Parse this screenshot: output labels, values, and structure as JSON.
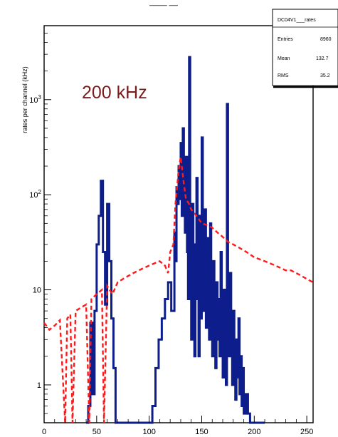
{
  "chart_data": {
    "type": "histogram",
    "title": "",
    "title_fragment": "____ __",
    "ylabel": "rates per channel (kHz)",
    "xlabel": "",
    "xlim": [
      0,
      256
    ],
    "ylim": [
      0.4,
      6000
    ],
    "y_scale": "log",
    "grid": false,
    "x_ticks": [
      0,
      50,
      100,
      150,
      200,
      250
    ],
    "y_ticks": [
      {
        "value": 1,
        "base": "1",
        "exp": ""
      },
      {
        "value": 10,
        "base": "10",
        "exp": ""
      },
      {
        "value": 100,
        "base": "10",
        "exp": "2"
      },
      {
        "value": 1000,
        "base": "10",
        "exp": "3"
      }
    ],
    "annotation": {
      "text": "200 kHz",
      "color": "#7a1c1c"
    },
    "stats_box": {
      "title": "DC04V1___rates",
      "rows": [
        {
          "label": "Entries",
          "value": "8960"
        },
        {
          "label": "Mean",
          "value": "132.7"
        },
        {
          "label": "RMS",
          "value": "35.2"
        }
      ]
    },
    "series": [
      {
        "style": "step-solid",
        "color": "#0d1e8c",
        "points": [
          [
            40,
            0.3
          ],
          [
            42,
            0.6
          ],
          [
            44,
            4.5
          ],
          [
            46,
            0.8
          ],
          [
            48,
            6
          ],
          [
            50,
            30
          ],
          [
            52,
            60
          ],
          [
            54,
            140
          ],
          [
            56,
            25
          ],
          [
            58,
            7
          ],
          [
            60,
            80
          ],
          [
            62,
            20
          ],
          [
            64,
            5
          ],
          [
            66,
            1.5
          ],
          [
            68,
            0.3
          ],
          [
            100,
            0.3
          ],
          [
            103,
            0.6
          ],
          [
            106,
            1.5
          ],
          [
            109,
            3
          ],
          [
            112,
            5
          ],
          [
            115,
            8
          ],
          [
            118,
            12
          ],
          [
            121,
            6
          ],
          [
            124,
            40
          ],
          [
            125,
            20
          ],
          [
            126,
            120
          ],
          [
            127,
            80
          ],
          [
            128,
            200
          ],
          [
            129,
            90
          ],
          [
            130,
            350
          ],
          [
            131,
            60
          ],
          [
            132,
            500
          ],
          [
            133,
            120
          ],
          [
            134,
            40
          ],
          [
            135,
            250
          ],
          [
            136,
            25
          ],
          [
            137,
            8
          ],
          [
            138,
            2800
          ],
          [
            139,
            15
          ],
          [
            140,
            3
          ],
          [
            141,
            80
          ],
          [
            142,
            12
          ],
          [
            143,
            2
          ],
          [
            144,
            30
          ],
          [
            145,
            150
          ],
          [
            146,
            8
          ],
          [
            147,
            2
          ],
          [
            148,
            60
          ],
          [
            149,
            5
          ],
          [
            150,
            400
          ],
          [
            151,
            10
          ],
          [
            152,
            6
          ],
          [
            153,
            70
          ],
          [
            154,
            4
          ],
          [
            155,
            35
          ],
          [
            156,
            15
          ],
          [
            157,
            3
          ],
          [
            158,
            50
          ],
          [
            159,
            6
          ],
          [
            160,
            2
          ],
          [
            161,
            20
          ],
          [
            162,
            5
          ],
          [
            163,
            1.5
          ],
          [
            164,
            12
          ],
          [
            165,
            3
          ],
          [
            166,
            8
          ],
          [
            167,
            2
          ],
          [
            168,
            25
          ],
          [
            169,
            4
          ],
          [
            170,
            1.2
          ],
          [
            171,
            10
          ],
          [
            172,
            3
          ],
          [
            173,
            1
          ],
          [
            174,
            900
          ],
          [
            175,
            6
          ],
          [
            176,
            2
          ],
          [
            177,
            15
          ],
          [
            178,
            4
          ],
          [
            179,
            1
          ],
          [
            180,
            6
          ],
          [
            181,
            2
          ],
          [
            182,
            0.7
          ],
          [
            183,
            3
          ],
          [
            184,
            1.2
          ],
          [
            185,
            5
          ],
          [
            186,
            0.8
          ],
          [
            187,
            2
          ],
          [
            188,
            0.6
          ],
          [
            189,
            1.5
          ],
          [
            190,
            0.5
          ],
          [
            192,
            0.8
          ],
          [
            194,
            0.5
          ],
          [
            196,
            0.4
          ],
          [
            198,
            0.3
          ],
          [
            210,
            0.3
          ]
        ]
      },
      {
        "style": "dashed",
        "color": "#ff1a1a",
        "points": [
          [
            0,
            4.5
          ],
          [
            5,
            3.8
          ],
          [
            10,
            4.2
          ],
          [
            15,
            4.8
          ],
          [
            20,
            0.4
          ],
          [
            22,
            5
          ],
          [
            25,
            5.5
          ],
          [
            27,
            0.4
          ],
          [
            30,
            6
          ],
          [
            35,
            6.5
          ],
          [
            40,
            7
          ],
          [
            43,
            0.4
          ],
          [
            45,
            8
          ],
          [
            50,
            9
          ],
          [
            55,
            10
          ],
          [
            57,
            0.4
          ],
          [
            60,
            11
          ],
          [
            65,
            9
          ],
          [
            70,
            12
          ],
          [
            75,
            13
          ],
          [
            80,
            14
          ],
          [
            85,
            15
          ],
          [
            90,
            16
          ],
          [
            95,
            17
          ],
          [
            100,
            18
          ],
          [
            105,
            19
          ],
          [
            110,
            20
          ],
          [
            115,
            18
          ],
          [
            118,
            15
          ],
          [
            120,
            25
          ],
          [
            123,
            30
          ],
          [
            125,
            80
          ],
          [
            128,
            180
          ],
          [
            130,
            250
          ],
          [
            133,
            130
          ],
          [
            135,
            90
          ],
          [
            138,
            80
          ],
          [
            140,
            70
          ],
          [
            145,
            60
          ],
          [
            150,
            50
          ],
          [
            155,
            48
          ],
          [
            160,
            45
          ],
          [
            165,
            40
          ],
          [
            170,
            36
          ],
          [
            175,
            32
          ],
          [
            180,
            30
          ],
          [
            185,
            28
          ],
          [
            190,
            26
          ],
          [
            195,
            24
          ],
          [
            200,
            22
          ],
          [
            205,
            21
          ],
          [
            210,
            20
          ],
          [
            215,
            19
          ],
          [
            220,
            18
          ],
          [
            225,
            17
          ],
          [
            230,
            16
          ],
          [
            235,
            16
          ],
          [
            240,
            15
          ],
          [
            245,
            14
          ],
          [
            250,
            13
          ],
          [
            256,
            12
          ]
        ]
      }
    ]
  }
}
